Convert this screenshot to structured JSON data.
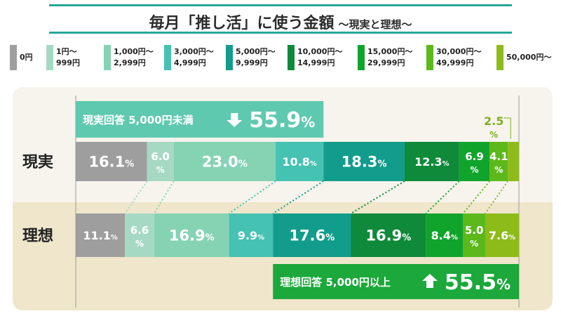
{
  "title": {
    "main": "毎月「推し活」に使う金額",
    "sub": "〜現実と理想〜"
  },
  "legend": [
    {
      "label": "0円",
      "color": "#9e9e9e"
    },
    {
      "label": "1円〜\n999円",
      "color": "#a6d9c4"
    },
    {
      "label": "1,000円〜\n2,999円",
      "color": "#86d3b4"
    },
    {
      "label": "3,000円〜\n4,999円",
      "color": "#45c2b2"
    },
    {
      "label": "5,000円〜\n9,999円",
      "color": "#129c8b"
    },
    {
      "label": "10,000円〜\n14,999円",
      "color": "#0e8a3a"
    },
    {
      "label": "15,000円〜\n29,999円",
      "color": "#11a42c"
    },
    {
      "label": "30,000円〜\n49,999円",
      "color": "#5cb81b"
    },
    {
      "label": "50,000円〜",
      "color": "#8dbb1a"
    }
  ],
  "chart_data": {
    "type": "bar",
    "orientation": "horizontal-stacked-100",
    "title": "毎月「推し活」に使う金額 〜現実と理想〜",
    "categories": [
      "0円",
      "1円〜999円",
      "1,000円〜2,999円",
      "3,000円〜4,999円",
      "5,000円〜9,999円",
      "10,000円〜14,999円",
      "15,000円〜29,999円",
      "30,000円〜49,999円",
      "50,000円〜"
    ],
    "unit": "%",
    "series": [
      {
        "name": "現実",
        "values": [
          16.1,
          6.0,
          23.0,
          10.8,
          18.3,
          12.3,
          6.9,
          4.1,
          2.5
        ]
      },
      {
        "name": "理想",
        "values": [
          11.1,
          6.6,
          16.9,
          9.9,
          17.6,
          16.9,
          8.4,
          5.0,
          7.6
        ]
      }
    ],
    "annotations": [
      {
        "series": "現実",
        "text": "現実回答 5,000円未満",
        "arrow": "down",
        "value": "55.9",
        "unit": "%"
      },
      {
        "series": "理想",
        "text": "理想回答 5,000円以上",
        "arrow": "up",
        "value": "55.5",
        "unit": "%"
      }
    ],
    "percent_sign": "%"
  }
}
